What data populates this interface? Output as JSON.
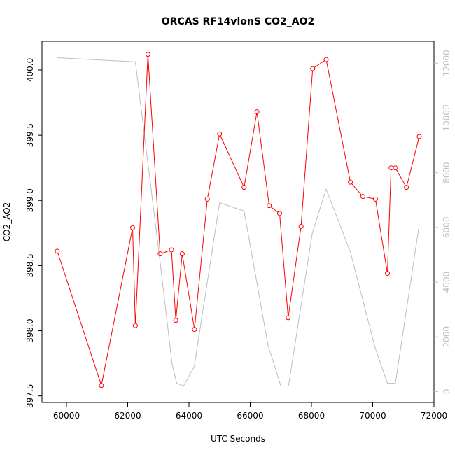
{
  "chart_data": {
    "type": "line",
    "title": "ORCAS RF14vlonS CO2_AO2",
    "xlabel": "UTC Seconds",
    "ylabel": "CO2_AO2",
    "y2label": "",
    "xlim": [
      59200,
      72000
    ],
    "ylim": [
      397.45,
      400.22
    ],
    "y2lim": [
      -400,
      12800
    ],
    "x_ticks": [
      60000,
      62000,
      64000,
      66000,
      68000,
      70000,
      72000
    ],
    "y_ticks": [
      397.5,
      398.0,
      398.5,
      399.0,
      399.5,
      400.0
    ],
    "y2_ticks": [
      0,
      2000,
      4000,
      6000,
      8000,
      10000,
      12000
    ],
    "grid": false,
    "colors": {
      "co2": "#ff0000",
      "secondary": "#bebebe",
      "axis": "#000000"
    },
    "series": [
      {
        "axis": "left",
        "style": "line-with-open-circles",
        "x": [
          59700,
          61140,
          62160,
          62250,
          62660,
          63060,
          63430,
          63570,
          63780,
          64180,
          64600,
          65000,
          65800,
          66220,
          66620,
          66960,
          67240,
          67660,
          68040,
          68480,
          69270,
          69680,
          70090,
          70480,
          70600,
          70740,
          71100,
          71520
        ],
        "values": [
          398.61,
          397.58,
          398.79,
          398.04,
          400.12,
          398.59,
          398.62,
          398.08,
          398.59,
          398.01,
          399.01,
          399.51,
          399.1,
          399.68,
          398.96,
          398.9,
          398.1,
          398.8,
          400.01,
          400.08,
          399.14,
          399.03,
          399.01,
          398.44,
          399.25,
          399.25,
          399.1,
          399.49
        ]
      },
      {
        "axis": "right",
        "style": "line",
        "x": [
          59700,
          62250,
          63030,
          63450,
          63600,
          63820,
          64170,
          65000,
          65800,
          66580,
          67000,
          67250,
          68030,
          68480,
          69270,
          70080,
          70480,
          70740,
          71520
        ],
        "values": [
          12200,
          12050,
          5000,
          1000,
          300,
          200,
          900,
          6900,
          6600,
          1700,
          200,
          200,
          5800,
          7400,
          5100,
          1600,
          300,
          300,
          6100
        ]
      }
    ]
  }
}
